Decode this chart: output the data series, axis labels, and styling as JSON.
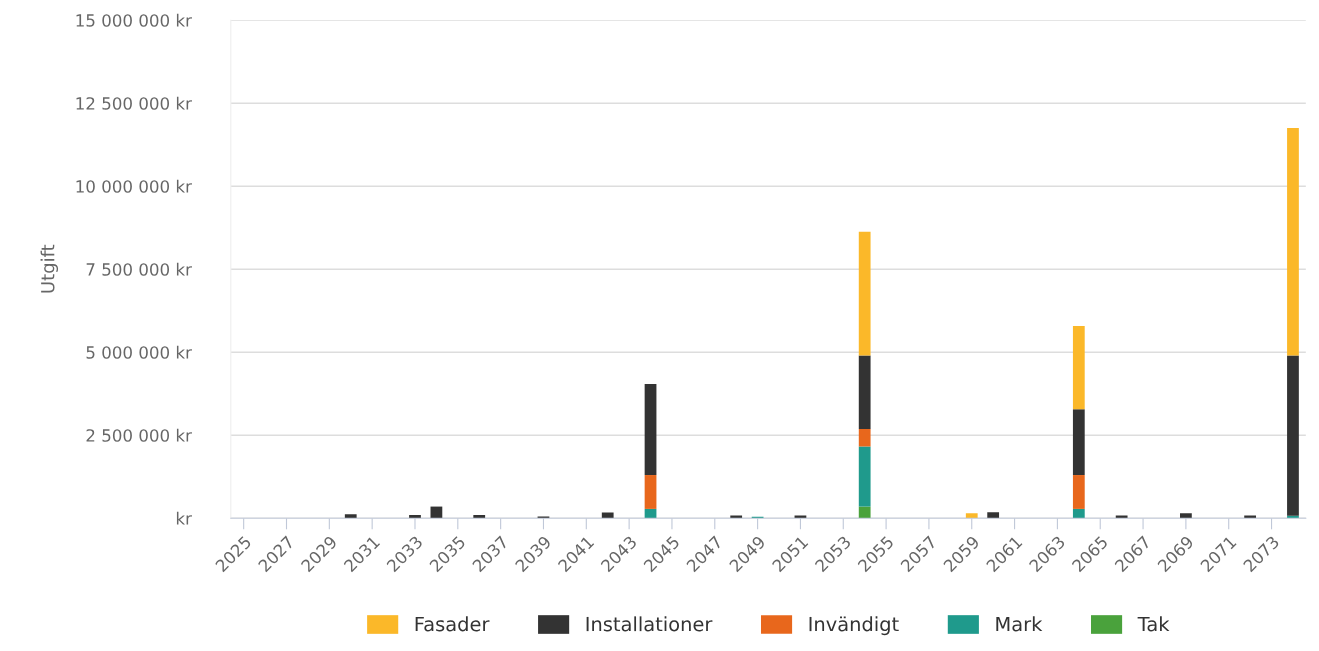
{
  "chart_data": {
    "type": "bar",
    "stacked": true,
    "ylabel": "Utgift",
    "categories": [
      "2025",
      null,
      "2027",
      null,
      "2029",
      null,
      "2031",
      null,
      "2033",
      null,
      "2035",
      null,
      "2037",
      null,
      "2039",
      null,
      "2041",
      null,
      "2043",
      null,
      "2045",
      null,
      "2047",
      null,
      "2049",
      null,
      "2051",
      null,
      "2053",
      null,
      "2055",
      null,
      "2057",
      null,
      "2059",
      null,
      "2061",
      null,
      "2063",
      null,
      "2065",
      null,
      "2067",
      null,
      "2069",
      null,
      "2071",
      null,
      "2073",
      null
    ],
    "series": [
      {
        "name": "Tak",
        "color": "#4aa23c",
        "values": [
          null,
          null,
          null,
          null,
          null,
          null,
          null,
          null,
          null,
          null,
          null,
          null,
          null,
          null,
          null,
          null,
          null,
          null,
          null,
          null,
          null,
          null,
          null,
          null,
          null,
          null,
          null,
          null,
          null,
          350000,
          null,
          null,
          null,
          null,
          null,
          null,
          null,
          null,
          null,
          null,
          null,
          null,
          null,
          null,
          null,
          null,
          null,
          null,
          null,
          null
        ]
      },
      {
        "name": "Mark",
        "color": "#1f9a8c",
        "values": [
          null,
          null,
          null,
          null,
          null,
          null,
          null,
          null,
          null,
          null,
          null,
          null,
          null,
          null,
          null,
          null,
          null,
          null,
          null,
          280000,
          null,
          null,
          null,
          null,
          40000,
          null,
          null,
          null,
          null,
          1810000,
          null,
          null,
          null,
          null,
          null,
          null,
          null,
          null,
          null,
          280000,
          null,
          null,
          null,
          null,
          null,
          null,
          null,
          null,
          null,
          70000
        ]
      },
      {
        "name": "Invändigt",
        "color": "#e8671c",
        "values": [
          null,
          null,
          null,
          null,
          null,
          null,
          null,
          null,
          null,
          null,
          null,
          null,
          null,
          null,
          null,
          null,
          null,
          null,
          null,
          1020000,
          null,
          null,
          null,
          null,
          null,
          null,
          null,
          null,
          null,
          530000,
          null,
          null,
          null,
          null,
          null,
          null,
          null,
          null,
          null,
          1020000,
          null,
          null,
          null,
          null,
          null,
          null,
          null,
          null,
          null,
          null
        ]
      },
      {
        "name": "Installationer",
        "color": "#333333",
        "values": [
          null,
          null,
          null,
          null,
          null,
          120000,
          null,
          null,
          100000,
          350000,
          null,
          100000,
          null,
          null,
          50000,
          null,
          null,
          170000,
          null,
          2740000,
          null,
          null,
          null,
          80000,
          null,
          null,
          80000,
          null,
          null,
          2210000,
          null,
          null,
          null,
          null,
          null,
          180000,
          null,
          null,
          null,
          1980000,
          null,
          80000,
          null,
          null,
          150000,
          null,
          null,
          80000,
          null,
          4830000
        ]
      },
      {
        "name": "Fasader",
        "color": "#fbb829",
        "values": [
          null,
          null,
          null,
          null,
          null,
          null,
          null,
          null,
          null,
          null,
          null,
          null,
          null,
          null,
          null,
          null,
          null,
          null,
          null,
          null,
          null,
          null,
          null,
          null,
          null,
          null,
          null,
          null,
          null,
          3730000,
          null,
          null,
          null,
          null,
          150000,
          null,
          null,
          null,
          null,
          2510000,
          null,
          null,
          null,
          null,
          null,
          null,
          null,
          null,
          null,
          6850000
        ]
      }
    ],
    "ylim": [
      0,
      15000000
    ],
    "yticks": [
      {
        "value": 0,
        "label": "kr"
      },
      {
        "value": 2500000,
        "label": "2 500 000 kr"
      },
      {
        "value": 5000000,
        "label": "5 000 000 kr"
      },
      {
        "value": 7500000,
        "label": "7 500 000 kr"
      },
      {
        "value": 10000000,
        "label": "10 000 000 kr"
      },
      {
        "value": 12500000,
        "label": "12 500 000 kr"
      },
      {
        "value": 15000000,
        "label": "15 000 000 kr"
      }
    ],
    "grid": "y",
    "legend": "bottom"
  }
}
